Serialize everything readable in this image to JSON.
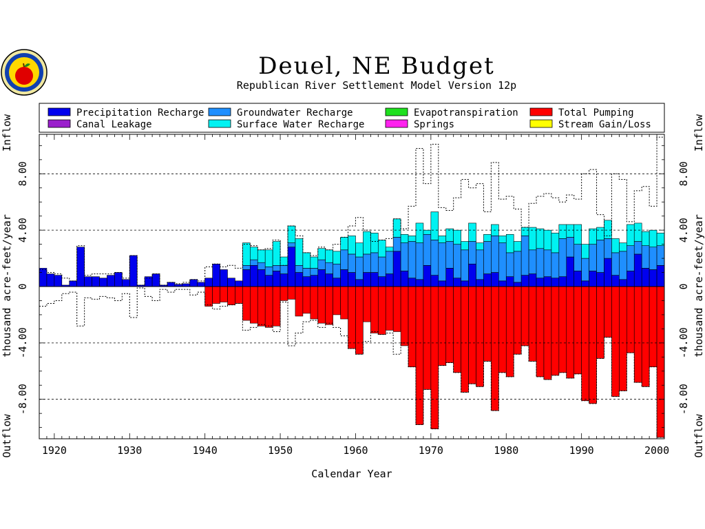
{
  "title": "Deuel, NE Budget",
  "subtitle": "Republican River Settlement Model Version 12p",
  "chart_data": {
    "type": "bar",
    "stacked": true,
    "xlabel": "Calendar Year",
    "ylabel": "thousand acre-feet/year",
    "ylabel_top": "Inflow",
    "ylabel_bottom": "Outflow",
    "xlim": [
      1918,
      2001
    ],
    "ylim": [
      -10.8,
      10.8
    ],
    "xticks": [
      1920,
      1930,
      1940,
      1950,
      1960,
      1970,
      1980,
      1990,
      2000
    ],
    "yticks": [
      -8,
      -4,
      0,
      4,
      8
    ],
    "ytick_labels": [
      "-8.00",
      "-4.00",
      "0",
      "4.00",
      "8.00"
    ],
    "grid": "dashed horizontal at ±4 and ±8",
    "legend_position": "top",
    "x": [
      1918,
      1919,
      1920,
      1921,
      1922,
      1923,
      1924,
      1925,
      1926,
      1927,
      1928,
      1929,
      1930,
      1931,
      1932,
      1933,
      1934,
      1935,
      1936,
      1937,
      1938,
      1939,
      1940,
      1941,
      1942,
      1943,
      1944,
      1945,
      1946,
      1947,
      1948,
      1949,
      1950,
      1951,
      1952,
      1953,
      1954,
      1955,
      1956,
      1957,
      1958,
      1959,
      1960,
      1961,
      1962,
      1963,
      1964,
      1965,
      1966,
      1967,
      1968,
      1969,
      1970,
      1971,
      1972,
      1973,
      1974,
      1975,
      1976,
      1977,
      1978,
      1979,
      1980,
      1981,
      1982,
      1983,
      1984,
      1985,
      1986,
      1987,
      1988,
      1989,
      1990,
      1991,
      1992,
      1993,
      1994,
      1995,
      1996,
      1997,
      1998,
      1999,
      2000
    ],
    "series": [
      {
        "name": "Precipitation Recharge",
        "color": "#0000ee",
        "values": [
          1.3,
          0.9,
          0.8,
          0.1,
          0.4,
          2.8,
          0.7,
          0.7,
          0.6,
          0.8,
          1.0,
          0.5,
          2.2,
          0.1,
          0.7,
          0.9,
          0.1,
          0.3,
          0.15,
          0.2,
          0.5,
          0.3,
          0.6,
          1.6,
          1.2,
          0.6,
          0.4,
          1.2,
          1.5,
          1.2,
          0.8,
          1.1,
          0.9,
          2.8,
          1.0,
          0.7,
          0.8,
          1.2,
          0.9,
          0.6,
          1.2,
          1.0,
          0.5,
          1.0,
          1.0,
          0.7,
          0.9,
          2.5,
          1.1,
          0.6,
          0.5,
          1.5,
          0.8,
          0.4,
          1.3,
          0.6,
          0.4,
          1.6,
          0.5,
          0.9,
          1.0,
          0.4,
          0.7,
          0.3,
          0.8,
          0.9,
          0.6,
          0.7,
          0.6,
          0.7,
          2.1,
          1.1,
          0.4,
          1.1,
          1.0,
          2.0,
          0.8,
          0.5,
          1.1,
          2.3,
          1.3,
          1.2,
          1.5
        ]
      },
      {
        "name": "Canal Leakage",
        "color": "#9a1fcc",
        "values": [
          0,
          0,
          0,
          0,
          0,
          0,
          0,
          0,
          0,
          0,
          0,
          0,
          0,
          0,
          0,
          0,
          0,
          0,
          0,
          0,
          0,
          0,
          0,
          0,
          0,
          0,
          0,
          0,
          0,
          0,
          0,
          0,
          0,
          0,
          0,
          0,
          0,
          0,
          0,
          0,
          0,
          0,
          0,
          0,
          0,
          0,
          0,
          0,
          0,
          0,
          0,
          0,
          0,
          0,
          0,
          0,
          0,
          0,
          0,
          0,
          0,
          0,
          0,
          0,
          0,
          0,
          0,
          0,
          0,
          0,
          0,
          0,
          0,
          0,
          0,
          0,
          0,
          0,
          0,
          0,
          0,
          0,
          0
        ]
      },
      {
        "name": "Groundwater Recharge",
        "color": "#1f8fff",
        "values": [
          0,
          0,
          0,
          0,
          0,
          0,
          0,
          0,
          0,
          0,
          0,
          0,
          0,
          0,
          0,
          0,
          0,
          0,
          0,
          0,
          0,
          0,
          0,
          0,
          0,
          0,
          0,
          0.3,
          0.4,
          0.5,
          0.6,
          0.4,
          0.6,
          0.3,
          0.5,
          0.6,
          0.5,
          0.7,
          0.8,
          1.0,
          1.4,
          1.3,
          1.6,
          1.3,
          1.4,
          1.4,
          1.6,
          1.0,
          2.0,
          2.6,
          2.6,
          2.2,
          2.5,
          2.7,
          1.9,
          2.4,
          2.2,
          1.6,
          2.1,
          2.3,
          2.6,
          2.7,
          1.7,
          2.2,
          2.8,
          1.7,
          2.1,
          1.9,
          1.8,
          2.7,
          1.4,
          1.9,
          1.6,
          1.9,
          2.3,
          1.4,
          1.6,
          2.0,
          1.8,
          0.9,
          1.6,
          1.6,
          1.4
        ]
      },
      {
        "name": "Surface Water Recharge",
        "color": "#00f2f2",
        "values": [
          0,
          0,
          0,
          0,
          0,
          0,
          0,
          0,
          0,
          0,
          0,
          0,
          0,
          0,
          0,
          0,
          0,
          0,
          0,
          0,
          0,
          0,
          0,
          0,
          0,
          0,
          0,
          1.6,
          0.9,
          0.9,
          1.2,
          1.7,
          0.6,
          1.2,
          1.9,
          1.1,
          0.8,
          0.8,
          0.9,
          0.9,
          0.9,
          1.3,
          1.0,
          1.6,
          1.4,
          1.2,
          0.3,
          1.3,
          0.6,
          0.4,
          1.4,
          0.3,
          2.0,
          0.5,
          0.9,
          1.0,
          0.6,
          1.3,
          0.5,
          0.5,
          0.8,
          0.5,
          1.3,
          0.7,
          0.6,
          1.6,
          1.4,
          1.4,
          1.4,
          1.0,
          0.9,
          1.4,
          1.0,
          1.1,
          0.9,
          1.3,
          1.0,
          0.6,
          1.5,
          1.3,
          1.0,
          1.2,
          0.9
        ]
      },
      {
        "name": "Evapotranspiration",
        "color": "#1ee01e",
        "values": [
          0,
          0,
          0,
          0,
          0,
          0,
          0,
          0,
          0,
          0,
          0,
          0,
          0,
          0,
          0,
          0,
          0,
          0,
          0,
          0,
          0,
          0,
          0,
          0,
          0,
          0,
          0,
          0,
          0,
          0,
          0,
          0,
          0,
          0,
          0,
          0,
          0,
          0,
          0,
          0,
          0,
          0,
          0,
          0,
          0,
          0,
          0,
          0,
          0,
          0,
          0,
          0,
          0,
          0,
          0,
          0,
          0,
          0,
          0,
          0,
          0,
          0,
          0,
          0,
          0,
          0,
          0,
          0,
          0,
          0,
          0,
          0,
          0,
          0,
          0,
          0,
          0,
          0,
          0,
          0,
          0,
          0,
          0
        ]
      },
      {
        "name": "Springs",
        "color": "#ff22ee",
        "values": [
          0,
          0,
          0,
          0,
          0,
          0,
          0,
          0,
          0,
          0,
          0,
          0,
          0,
          0,
          0,
          0,
          0,
          0,
          0,
          0,
          0,
          0,
          0,
          0,
          0,
          0,
          0,
          0,
          0,
          0,
          0,
          0,
          0,
          0,
          0,
          0,
          0,
          0,
          0,
          0,
          0,
          0,
          0,
          0,
          0,
          0,
          0,
          0,
          0,
          0,
          0,
          0,
          0,
          0,
          0,
          0,
          0,
          0,
          0,
          0,
          0,
          0,
          0,
          0,
          0,
          0,
          0,
          0,
          0,
          0,
          0,
          0,
          0,
          0,
          0,
          0,
          0,
          0,
          0,
          0,
          0,
          0,
          0
        ]
      },
      {
        "name": "Total Pumping",
        "color": "#ff0000",
        "values": [
          0,
          0,
          0,
          0,
          0,
          0,
          0,
          0,
          0,
          0,
          0,
          0,
          0,
          0,
          0,
          0,
          0,
          0,
          0,
          0,
          0,
          0,
          -1.4,
          -1.2,
          -1.1,
          -1.3,
          -1.2,
          -2.4,
          -2.6,
          -2.8,
          -2.9,
          -2.8,
          -1.0,
          -0.9,
          -2.1,
          -1.9,
          -2.3,
          -2.6,
          -2.7,
          -2.0,
          -2.3,
          -4.4,
          -4.8,
          -2.5,
          -3.3,
          -3.4,
          -3.1,
          -3.2,
          -4.2,
          -5.7,
          -9.8,
          -7.3,
          -10.1,
          -5.6,
          -5.4,
          -6.1,
          -7.5,
          -6.9,
          -7.1,
          -5.3,
          -8.8,
          -6.1,
          -6.4,
          -4.8,
          -4.2,
          -5.3,
          -6.4,
          -6.6,
          -6.3,
          -6.1,
          -6.5,
          -6.2,
          -8.1,
          -8.3,
          -5.1,
          -3.6,
          -7.8,
          -7.4,
          -4.7,
          -6.8,
          -7.1,
          -5.7,
          -10.7
        ]
      },
      {
        "name": "Stream Gain/Loss",
        "color": "#ffff00",
        "values": [
          0,
          0,
          0,
          0,
          0,
          0,
          0,
          0,
          0,
          0,
          0,
          0,
          0,
          0,
          0,
          0,
          0,
          0,
          0,
          0,
          0,
          0,
          0,
          0,
          0,
          0,
          0,
          0,
          0,
          0,
          0,
          0,
          0,
          0,
          0,
          0,
          0,
          0,
          0,
          0,
          0,
          0,
          0,
          0,
          0,
          0,
          0,
          0,
          0,
          0,
          0,
          0,
          0,
          0,
          0,
          0,
          0,
          0,
          0,
          0,
          0,
          0,
          0,
          0,
          0,
          0,
          0,
          0,
          0,
          0,
          0,
          0,
          0,
          0,
          0,
          0,
          0,
          0,
          0,
          0,
          0,
          0,
          0
        ]
      }
    ],
    "net_inflow_outline": [
      1.2,
      1.0,
      0.9,
      0.6,
      0.4,
      2.9,
      0.8,
      0.9,
      0.9,
      0.9,
      1.0,
      0.6,
      2.2,
      0.1,
      0.6,
      0.9,
      0.1,
      0.3,
      0.2,
      0.3,
      0.5,
      0.4,
      1.4,
      1.6,
      1.4,
      1.5,
      1.3,
      3.0,
      2.9,
      2.6,
      2.7,
      3.3,
      1.5,
      4.3,
      3.6,
      2.4,
      2.2,
      2.8,
      2.6,
      3.0,
      3.5,
      4.3,
      4.9,
      4.0,
      3.2,
      3.3,
      3.4,
      4.8,
      4.1,
      5.7,
      9.8,
      7.3,
      10.1,
      5.6,
      5.4,
      6.3,
      7.6,
      7.0,
      7.3,
      5.3,
      8.8,
      6.2,
      6.4,
      5.5,
      4.2,
      5.9,
      6.4,
      6.6,
      6.3,
      6.0,
      6.5,
      6.2,
      8.0,
      8.3,
      5.1,
      3.6,
      8.0,
      7.6,
      4.6,
      6.8,
      7.1,
      5.7,
      10.6
    ],
    "net_outflow_outline": [
      -1.4,
      -1.2,
      -1.0,
      -0.5,
      -0.4,
      -2.8,
      -0.8,
      -0.9,
      -0.7,
      -0.8,
      -1.0,
      -0.5,
      -2.2,
      -0.1,
      -0.7,
      -1.0,
      -0.2,
      -0.4,
      -0.2,
      -0.2,
      -0.6,
      -0.4,
      -1.3,
      -1.6,
      -1.4,
      -1.3,
      -1.2,
      -3.1,
      -2.9,
      -2.7,
      -2.8,
      -3.2,
      -1.1,
      -4.2,
      -3.3,
      -2.5,
      -2.4,
      -2.9,
      -2.6,
      -2.9,
      -3.5,
      -4.4,
      -4.8,
      -3.9,
      -3.2,
      -3.4,
      -3.3,
      -4.8,
      -4.0,
      -5.7,
      -9.8,
      -7.3,
      -10.1,
      -5.6,
      -5.4,
      -6.1,
      -7.5,
      -6.9,
      -7.1,
      -5.3,
      -8.8,
      -6.1,
      -6.4,
      -4.8,
      -4.2,
      -5.3,
      -6.4,
      -6.6,
      -6.3,
      -6.1,
      -6.5,
      -6.2,
      -8.1,
      -8.3,
      -5.1,
      -3.6,
      -7.8,
      -7.4,
      -4.7,
      -6.8,
      -7.1,
      -5.7,
      -10.7
    ]
  }
}
